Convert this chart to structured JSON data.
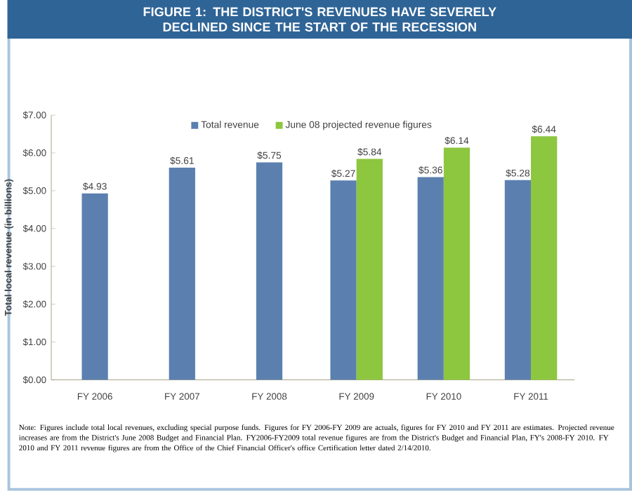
{
  "chart_data": {
    "type": "bar",
    "title": "FIGURE 1: THE DISTRICT'S REVENUES HAVE SEVERELY DECLINED SINCE THE START OF THE RECESSION",
    "ylabel": "Total local revenue (in billions)",
    "categories": [
      "FY 2006",
      "FY 2007",
      "FY 2008",
      "FY 2009",
      "FY 2010",
      "FY 2011"
    ],
    "series": [
      {
        "name": "Total revenue",
        "color": "#5b80b0",
        "values": [
          4.93,
          5.61,
          5.75,
          5.27,
          5.36,
          5.28
        ],
        "value_labels": [
          "$4.93",
          "$5.61",
          "$5.75",
          "$5.27",
          "$5.36",
          "$5.28"
        ]
      },
      {
        "name": "June 08 projected revenue figures",
        "color": "#8dc63f",
        "values": [
          null,
          null,
          null,
          5.84,
          6.14,
          6.44
        ],
        "value_labels": [
          null,
          null,
          null,
          "$5.84",
          "$6.14",
          "$6.44"
        ]
      }
    ],
    "ylim": [
      0,
      7
    ],
    "yticks": [
      {
        "value": 0,
        "label": "$0.00"
      },
      {
        "value": 1,
        "label": "$1.00"
      },
      {
        "value": 2,
        "label": "$2.00"
      },
      {
        "value": 3,
        "label": "$3.00"
      },
      {
        "value": 4,
        "label": "$4.00"
      },
      {
        "value": 5,
        "label": "$5.00"
      },
      {
        "value": 6,
        "label": "$6.00"
      },
      {
        "value": 7,
        "label": "$7.00"
      }
    ],
    "grid": false,
    "legend": "top",
    "annotations": [
      "Note: Figures include total local revenues, excluding special purpose funds.  Figures for FY 2006-FY 2009 are actuals, figures for FY 2010 and FY 2011 are estimates.  Projected revenue increases are from the District's June 2008 Budget and Financial Plan.  FY2006-FY2009 total revenue figures are from the District's Budget and Financial Plan, FY's 2008-FY 2010.  FY 2010 and FY 2011 revenue figures are from the Office of the Chief Financial Officer's office Certification letter dated 2/14/2010."
    ]
  }
}
